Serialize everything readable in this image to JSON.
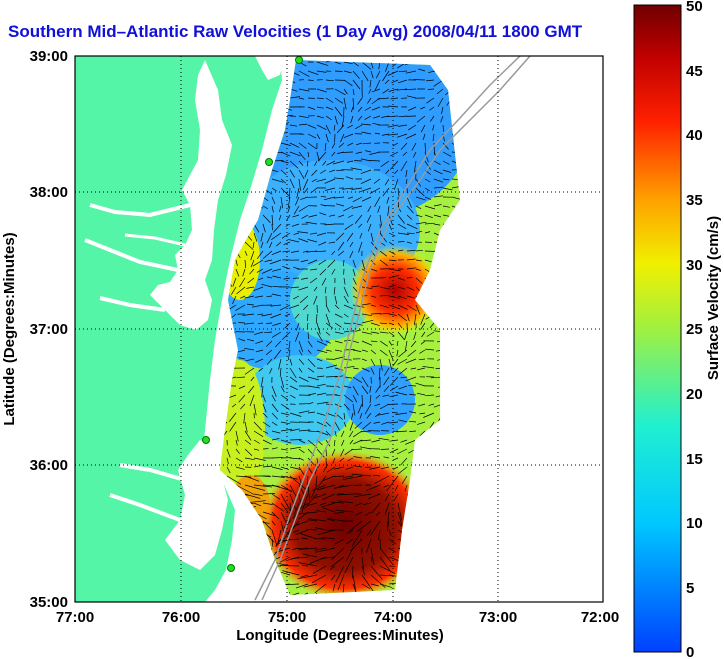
{
  "title": "Southern Mid–Atlantic Raw Velocities (1 Day Avg) 2008/04/11 1800 GMT",
  "axes": {
    "xlabel": "Longitude (Degrees:Minutes)",
    "ylabel": "Latitude (Degrees:Minutes)",
    "xticks": [
      "77:00",
      "76:00",
      "75:00",
      "74:00",
      "73:00",
      "72:00"
    ],
    "yticks": [
      "39:00",
      "38:00",
      "37:00",
      "36:00",
      "35:00"
    ]
  },
  "colorbar": {
    "label": "Surface Velocity (cm/s)",
    "ticks": [
      "50",
      "45",
      "40",
      "35",
      "30",
      "25",
      "20",
      "15",
      "10",
      "5",
      "0"
    ],
    "min": 0,
    "max": 50
  },
  "colors": {
    "land": "#55f5a8",
    "title": "#1010d8",
    "site_marker": "#22dd22"
  }
}
